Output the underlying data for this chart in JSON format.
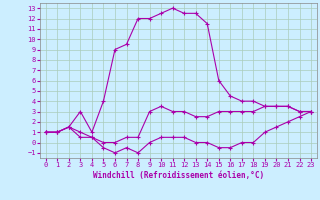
{
  "xlabel": "Windchill (Refroidissement éolien,°C)",
  "background_color": "#cceeff",
  "grid_color": "#aaccbb",
  "line_color": "#aa00aa",
  "x_hours": [
    0,
    1,
    2,
    3,
    4,
    5,
    6,
    7,
    8,
    9,
    10,
    11,
    12,
    13,
    14,
    15,
    16,
    17,
    18,
    19,
    20,
    21,
    22,
    23
  ],
  "curve_temp_y": [
    1,
    1,
    1.5,
    1,
    0.5,
    0,
    0,
    0.5,
    0.5,
    3,
    3.5,
    3,
    3,
    2.5,
    2.5,
    3,
    3,
    3,
    3,
    3.5,
    3.5,
    3.5,
    3,
    3
  ],
  "curve_high_y": [
    1,
    1,
    1.5,
    3,
    1,
    4,
    9,
    9.5,
    12,
    12,
    12.5,
    13,
    12.5,
    12.5,
    11.5,
    6,
    4.5,
    4,
    4,
    3.5,
    3.5,
    3.5,
    3,
    3
  ],
  "curve_low_y": [
    1,
    1,
    1.5,
    0.5,
    0.5,
    -0.5,
    -1,
    -0.5,
    -1,
    0,
    0.5,
    0.5,
    0.5,
    0,
    0,
    -0.5,
    -0.5,
    0,
    0,
    1,
    1.5,
    2,
    2.5,
    3
  ],
  "xlim": [
    -0.5,
    23.5
  ],
  "ylim": [
    -1.5,
    13.5
  ],
  "yticks": [
    -1,
    0,
    1,
    2,
    3,
    4,
    5,
    6,
    7,
    8,
    9,
    10,
    11,
    12,
    13
  ],
  "xticks": [
    0,
    1,
    2,
    3,
    4,
    5,
    6,
    7,
    8,
    9,
    10,
    11,
    12,
    13,
    14,
    15,
    16,
    17,
    18,
    19,
    20,
    21,
    22,
    23
  ],
  "tick_fontsize": 5.0,
  "xlabel_fontsize": 5.5
}
